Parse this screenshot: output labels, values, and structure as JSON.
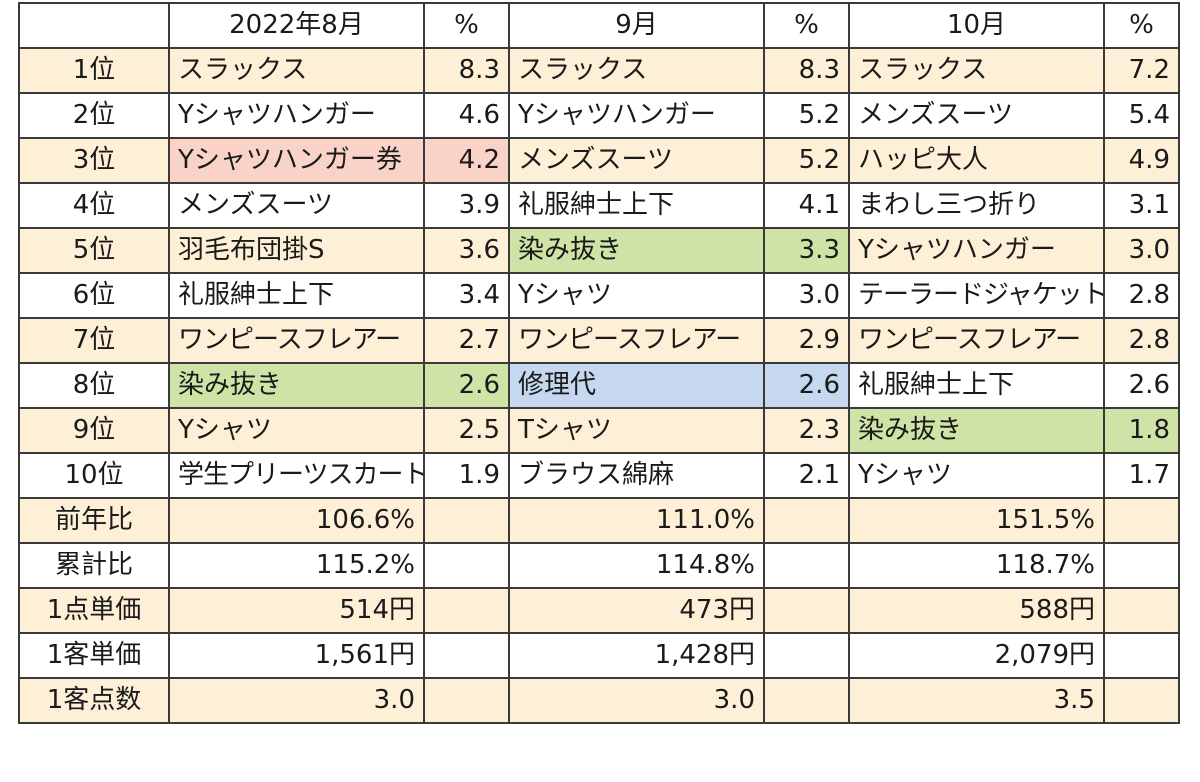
{
  "colors": {
    "band": "#fdf0d6",
    "pink": "#f9d3c8",
    "green": "#cfe3a6",
    "blue": "#c5d8ef",
    "border": "#3a3a3a"
  },
  "header": {
    "months": [
      "2022年8月",
      "9月",
      "10月"
    ],
    "pct": "%"
  },
  "ranking": [
    {
      "rank": "1位",
      "band": true,
      "cells": [
        {
          "item": "スラックス",
          "pct": "8.3"
        },
        {
          "item": "スラックス",
          "pct": "8.3"
        },
        {
          "item": "スラックス",
          "pct": "7.2"
        }
      ]
    },
    {
      "rank": "2位",
      "band": false,
      "cells": [
        {
          "item": "Yシャツハンガー",
          "pct": "4.6"
        },
        {
          "item": "Yシャツハンガー",
          "pct": "5.2"
        },
        {
          "item": "メンズスーツ",
          "pct": "5.4"
        }
      ]
    },
    {
      "rank": "3位",
      "band": true,
      "cells": [
        {
          "item": "Yシャツハンガー券",
          "pct": "4.2",
          "hl": "pink"
        },
        {
          "item": "メンズスーツ",
          "pct": "5.2"
        },
        {
          "item": "ハッピ大人",
          "pct": "4.9"
        }
      ]
    },
    {
      "rank": "4位",
      "band": false,
      "cells": [
        {
          "item": "メンズスーツ",
          "pct": "3.9"
        },
        {
          "item": "礼服紳士上下",
          "pct": "4.1"
        },
        {
          "item": "まわし三つ折り",
          "pct": "3.1"
        }
      ]
    },
    {
      "rank": "5位",
      "band": true,
      "cells": [
        {
          "item": "羽毛布団掛S",
          "pct": "3.6"
        },
        {
          "item": "染み抜き",
          "pct": "3.3",
          "hl": "green"
        },
        {
          "item": "Yシャツハンガー",
          "pct": "3.0"
        }
      ]
    },
    {
      "rank": "6位",
      "band": false,
      "cells": [
        {
          "item": "礼服紳士上下",
          "pct": "3.4"
        },
        {
          "item": "Yシャツ",
          "pct": "3.0"
        },
        {
          "item": "テーラードジャケット",
          "pct": "2.8",
          "narrow": true
        }
      ]
    },
    {
      "rank": "7位",
      "band": true,
      "cells": [
        {
          "item": "ワンピースフレアー",
          "pct": "2.7",
          "narrow": true
        },
        {
          "item": "ワンピースフレアー",
          "pct": "2.9",
          "narrow": true
        },
        {
          "item": "ワンピースフレアー",
          "pct": "2.8",
          "narrow": true
        }
      ]
    },
    {
      "rank": "8位",
      "band": false,
      "cells": [
        {
          "item": "染み抜き",
          "pct": "2.6",
          "hl": "green"
        },
        {
          "item": "修理代",
          "pct": "2.6",
          "hl": "blue"
        },
        {
          "item": "礼服紳士上下",
          "pct": "2.6"
        }
      ]
    },
    {
      "rank": "9位",
      "band": true,
      "cells": [
        {
          "item": "Yシャツ",
          "pct": "2.5"
        },
        {
          "item": "Tシャツ",
          "pct": "2.3"
        },
        {
          "item": "染み抜き",
          "pct": "1.8",
          "hl": "green"
        }
      ]
    },
    {
      "rank": "10位",
      "band": false,
      "cells": [
        {
          "item": "学生プリーツスカート",
          "pct": "1.9",
          "narrow": true
        },
        {
          "item": "ブラウス綿麻",
          "pct": "2.1"
        },
        {
          "item": "Yシャツ",
          "pct": "1.7"
        }
      ]
    }
  ],
  "summary": [
    {
      "label": "前年比",
      "band": true,
      "values": [
        "106.6%",
        "111.0%",
        "151.5%"
      ]
    },
    {
      "label": "累計比",
      "band": false,
      "values": [
        "115.2%",
        "114.8%",
        "118.7%"
      ]
    },
    {
      "label": "1点単価",
      "band": true,
      "values": [
        "514円",
        "473円",
        "588円"
      ]
    },
    {
      "label": "1客単価",
      "band": false,
      "values": [
        "1,561円",
        "1,428円",
        "2,079円"
      ]
    },
    {
      "label": "1客点数",
      "band": true,
      "values": [
        "3.0",
        "3.0",
        "3.5"
      ]
    }
  ]
}
